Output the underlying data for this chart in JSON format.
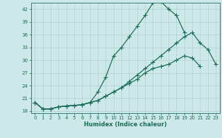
{
  "xlabel": "Humidex (Indice chaleur)",
  "xlim": [
    -0.5,
    23.5
  ],
  "ylim": [
    17.5,
    43.5
  ],
  "yticks": [
    18,
    21,
    24,
    27,
    30,
    33,
    36,
    39,
    42
  ],
  "xticks": [
    0,
    1,
    2,
    3,
    4,
    5,
    6,
    7,
    8,
    9,
    10,
    11,
    12,
    13,
    14,
    15,
    16,
    17,
    18,
    19,
    20,
    21,
    22,
    23
  ],
  "bg_color": "#cde8e8",
  "grid_color": "#b0d0d0",
  "line_color": "#1a6b5a",
  "line1_x": [
    0,
    1,
    2,
    3,
    4,
    5,
    6,
    7,
    8,
    9,
    10,
    11,
    12,
    13,
    14,
    15,
    16,
    17,
    18,
    19,
    20,
    21,
    22,
    23
  ],
  "line1_y": [
    20.0,
    18.5,
    18.5,
    19.0,
    19.2,
    19.3,
    19.5,
    20.0,
    20.5,
    21.5,
    22.5,
    23.5,
    25.0,
    26.5,
    28.0,
    29.5,
    31.0,
    32.5,
    34.0,
    35.5,
    36.5,
    34.0,
    32.5,
    29.0
  ],
  "line2_x": [
    0,
    1,
    2,
    3,
    4,
    5,
    6,
    7,
    8,
    9,
    10,
    11,
    12,
    13,
    14,
    15,
    16,
    17,
    18,
    19
  ],
  "line2_y": [
    20.0,
    18.5,
    18.5,
    19.0,
    19.2,
    19.3,
    19.5,
    20.0,
    22.5,
    26.0,
    31.0,
    33.0,
    35.5,
    38.0,
    40.5,
    43.5,
    43.8,
    42.0,
    40.5,
    36.5
  ],
  "line3_x": [
    0,
    1,
    2,
    3,
    4,
    5,
    6,
    7,
    8,
    9,
    10,
    11,
    12,
    13,
    14,
    15,
    16,
    17,
    18,
    19,
    20,
    21
  ],
  "line3_y": [
    20.0,
    18.5,
    18.5,
    19.0,
    19.2,
    19.3,
    19.5,
    20.0,
    20.5,
    21.5,
    22.5,
    23.5,
    24.5,
    25.5,
    27.0,
    28.0,
    28.5,
    29.0,
    30.0,
    31.0,
    30.5,
    28.5
  ]
}
